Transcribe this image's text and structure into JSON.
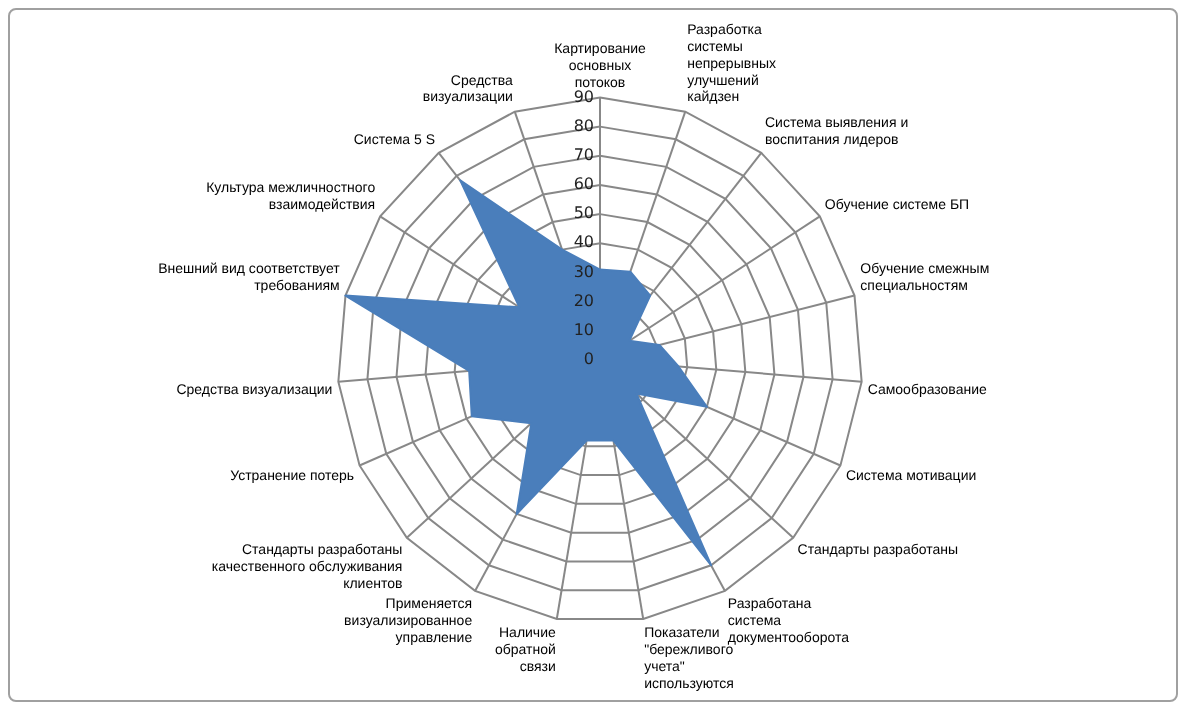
{
  "chart_data": {
    "type": "radar",
    "categories": [
      "Картирование основных потоков",
      "Разработка системы непрерывных улучшений кайдзен",
      "Система выявления и воспитания лидеров",
      "Обучение системе БП",
      "Обучение смежным специальностям",
      "Самообразование",
      "Система мотивации",
      "Стандарты разработаны",
      "Разработана система документооборота",
      "Показатели \"бережливого учета\" используются",
      "Наличие обратной связи",
      "Применяется визуализированное управление",
      "Стандарты разработаны качественного обслуживания клиентов",
      "Устранение потерь",
      "Средства визуализации",
      "Внешний вид соответствует требованиям",
      "Культура межличностного взаимодействия",
      "Система 5 S",
      "Средства визуализации"
    ],
    "series": [
      {
        "color": "#4a7ebb",
        "values": [
          31,
          32,
          28,
          12,
          21,
          27,
          40,
          17,
          80,
          28,
          28,
          60,
          32,
          48,
          45,
          90,
          33,
          78,
          40
        ]
      }
    ],
    "ylim": [
      0,
      90
    ],
    "yticks": [
      0,
      10,
      20,
      30,
      40,
      50,
      60,
      70,
      80,
      90
    ],
    "grid": true,
    "legend": false,
    "marker": "none"
  }
}
